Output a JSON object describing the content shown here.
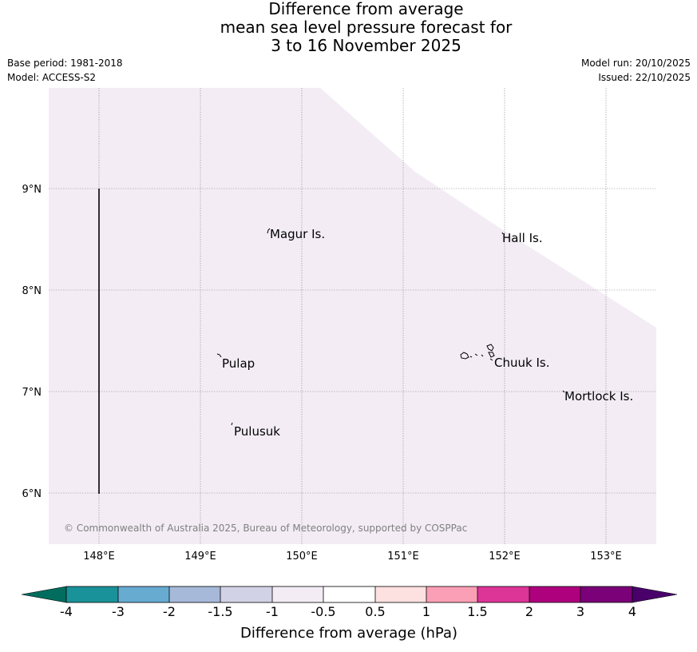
{
  "title": {
    "line1": "Difference from average",
    "line2": "mean sea level pressure forecast for",
    "line3": "3 to 16 November 2025"
  },
  "meta": {
    "base_period": "Base period: 1981-2018",
    "model": "Model: ACCESS-S2",
    "model_run": "Model run: 20/10/2025",
    "issued": "Issued: 22/10/2025"
  },
  "map": {
    "lon_labels": [
      "148°E",
      "149°E",
      "150°E",
      "151°E",
      "152°E",
      "153°E"
    ],
    "lat_labels": [
      "9°N",
      "8°N",
      "7°N",
      "6°N"
    ],
    "places": {
      "magur": "Magur Is.",
      "hall": "Hall Is.",
      "pulap": "Pulap",
      "chuuk": "Chuuk Is.",
      "mortlock": "Mortlock Is.",
      "pulusuk": "Pulusuk"
    },
    "copyright": "© Commonwealth of Australia 2025, Bureau of Meteorology, supported by COSPPac",
    "fill_color": "#f3ecf5"
  },
  "colorbar": {
    "label": "Difference from average (hPa)",
    "ticks": [
      "-4",
      "-3",
      "-2",
      "-1.5",
      "-1",
      "-0.5",
      "0.5",
      "1",
      "1.5",
      "2",
      "3",
      "4"
    ],
    "colors": {
      "below": "#006d5e",
      "c1": "#1a9299",
      "c2": "#67abd1",
      "c3": "#a6b9d9",
      "c4": "#d1d2e6",
      "c5": "#f3ecf5",
      "c6": "#ffffff",
      "c7": "#fde0e0",
      "c8": "#fa9fb5",
      "c9": "#dd3497",
      "c10": "#ae017e",
      "c11": "#7a0177",
      "above": "#49006a"
    }
  }
}
